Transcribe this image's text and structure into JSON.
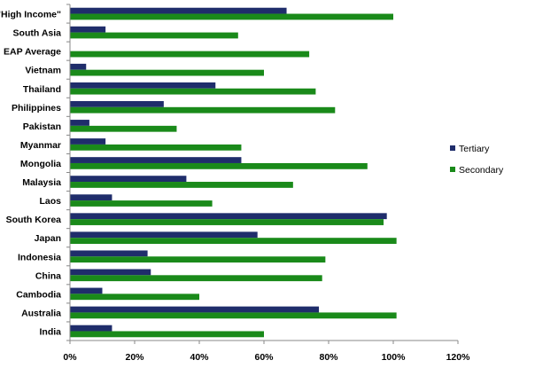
{
  "chart_data": {
    "type": "bar",
    "orientation": "horizontal",
    "title": "",
    "xlabel": "",
    "ylabel": "",
    "categories": [
      "\"High Income\"",
      "South Asia",
      "EAP Average",
      "Vietnam",
      "Thailand",
      "Philippines",
      "Pakistan",
      "Myanmar",
      "Mongolia",
      "Malaysia",
      "Laos",
      "South Korea",
      "Japan",
      "Indonesia",
      "China",
      "Cambodia",
      "Australia",
      "India"
    ],
    "series": [
      {
        "name": "Tertiary",
        "color": "#1f2d6b",
        "values": [
          67,
          11,
          null,
          5,
          45,
          29,
          6,
          11,
          53,
          36,
          13,
          98,
          58,
          24,
          25,
          10,
          77,
          13
        ]
      },
      {
        "name": "Secondary",
        "color": "#1a8a1a",
        "values": [
          100,
          52,
          74,
          60,
          76,
          82,
          33,
          53,
          92,
          69,
          44,
          97,
          101,
          79,
          78,
          40,
          101,
          60
        ]
      }
    ],
    "xlim": [
      0,
      120
    ],
    "xticks": [
      "0%",
      "20%",
      "40%",
      "60%",
      "80%",
      "100%",
      "120%"
    ],
    "tick_values": [
      0,
      20,
      40,
      60,
      80,
      100,
      120
    ],
    "grid": false,
    "legend_position": "right"
  }
}
